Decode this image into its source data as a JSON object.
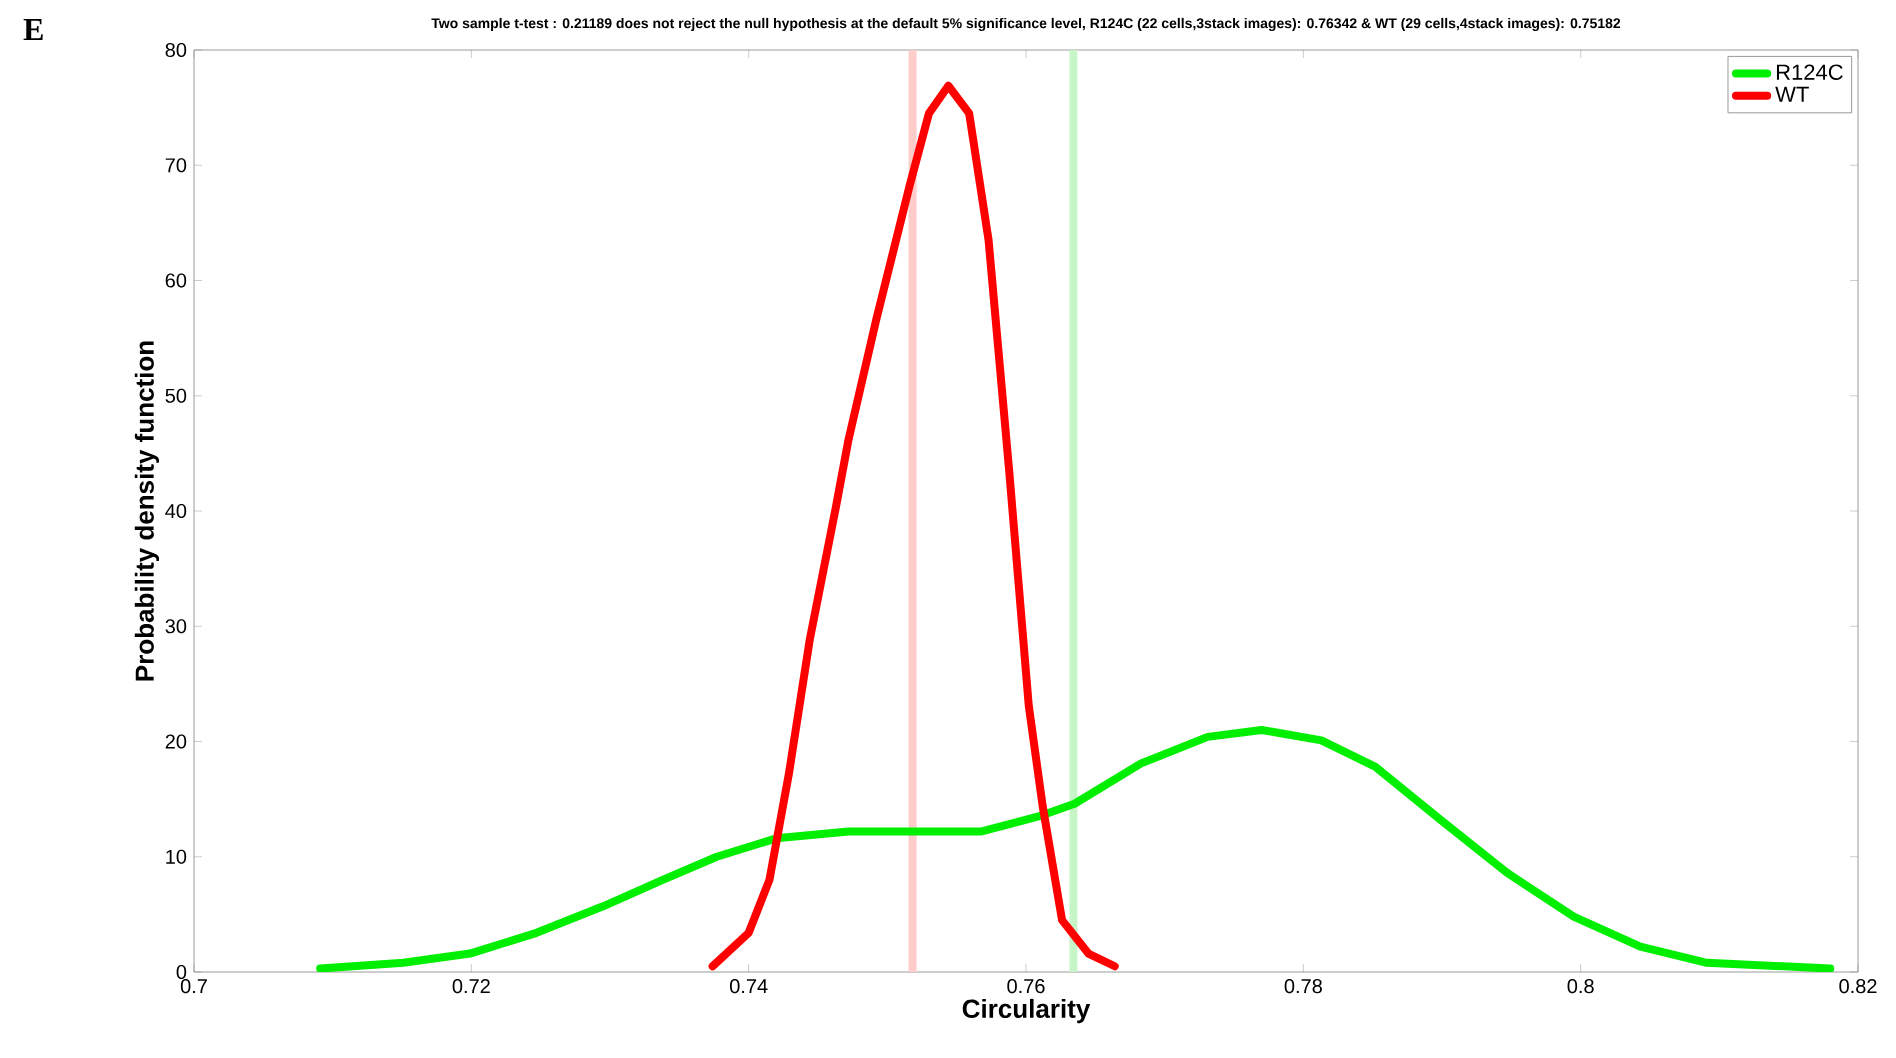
{
  "chart_data": {
    "type": "line",
    "title": "Two sample t-test : 0.21189 does not reject the null hypothesis at the default 5% significance level, R124C (22 cells,3stack images): 0.76342 & WT (29 cells,4stack images): 0.75182",
    "xlabel": "Circularity",
    "ylabel": "Probability density function",
    "annotations": [
      "E"
    ],
    "series": [
      {
        "name": "R124C",
        "color": "#00ee00",
        "x": [
          0.7091,
          0.7151,
          0.7199,
          0.7247,
          0.7295,
          0.7338,
          0.7377,
          0.742,
          0.7472,
          0.752,
          0.7568,
          0.7609,
          0.7635,
          0.7683,
          0.7731,
          0.777,
          0.7813,
          0.7852,
          0.7899,
          0.7947,
          0.7995,
          0.8043,
          0.8091,
          0.818
        ],
        "values": [
          0.3,
          0.8,
          1.6,
          3.4,
          5.7,
          8,
          10,
          11.6,
          12.2,
          12.2,
          12.2,
          13.5,
          14.6,
          18.1,
          20.4,
          21,
          20.1,
          17.8,
          13.2,
          8.6,
          4.8,
          2.2,
          0.8,
          0.3
        ]
      },
      {
        "name": "WT",
        "color": "#ff0000",
        "x": [
          0.7374,
          0.74,
          0.7415,
          0.7429,
          0.7444,
          0.7463,
          0.7472,
          0.7492,
          0.7516,
          0.753,
          0.7544,
          0.7559,
          0.7573,
          0.7588,
          0.7602,
          0.7612,
          0.7626,
          0.7645,
          0.7664
        ],
        "values": [
          0.5,
          3.4,
          8,
          17.2,
          28.8,
          40.4,
          46.2,
          56.6,
          68.2,
          74.5,
          76.9,
          74.5,
          63.5,
          43.3,
          23.1,
          14.4,
          4.5,
          1.6,
          0.5
        ]
      }
    ],
    "ref_lines": [
      {
        "axis": "x",
        "value": 0.75182,
        "color": "#ffcccc"
      },
      {
        "axis": "x",
        "value": 0.76342,
        "color": "#c8f5c8"
      }
    ],
    "xlim": [
      0.7,
      0.82
    ],
    "xticks": [
      0.7,
      0.72,
      0.74,
      0.76,
      0.78,
      0.8,
      0.82
    ],
    "ylim": [
      0,
      80
    ],
    "yticks": [
      0,
      10,
      20,
      30,
      40,
      50,
      60,
      70,
      80
    ],
    "grid": false,
    "legend": "top right",
    "marker": "none",
    "line_style": "solid"
  }
}
